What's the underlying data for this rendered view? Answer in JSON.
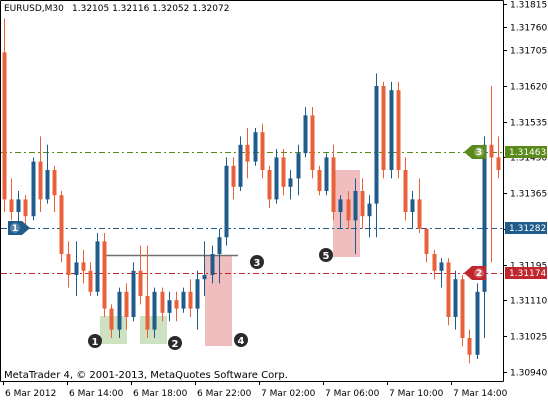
{
  "chart_data": {
    "type": "candlestick",
    "header": {
      "symbol": "EURUSD,M30",
      "ohlc": "1.32105 1.32116 1.32052 1.32072"
    },
    "copyright": "MetaTrader 4, © 2001-2013, MetaQuotes Software Corp.",
    "ylim": [
      1.3092,
      1.3182
    ],
    "y_ticks": [
      "1.31815",
      "1.31760",
      "1.31705",
      "1.31620",
      "1.31535",
      "1.31450",
      "1.31365",
      "1.31280",
      "1.31195",
      "1.31110",
      "1.31025",
      "1.30940"
    ],
    "x_ticks": [
      "6 Mar 2012",
      "6 Mar 14:00",
      "6 Mar 18:00",
      "6 Mar 22:00",
      "7 Mar 02:00",
      "7 Mar 06:00",
      "7 Mar 10:00",
      "7 Mar 14:00"
    ],
    "bull_color": "#1f5c8c",
    "bear_color": "#e8613a",
    "candles": [
      [
        1.317,
        1.3178,
        1.3132,
        1.3135
      ],
      [
        1.3135,
        1.314,
        1.313,
        1.3132
      ],
      [
        1.3132,
        1.3137,
        1.3128,
        1.3135
      ],
      [
        1.3135,
        1.3136,
        1.3128,
        1.3131
      ],
      [
        1.3131,
        1.3145,
        1.313,
        1.3144
      ],
      [
        1.3144,
        1.315,
        1.3132,
        1.3135
      ],
      [
        1.3135,
        1.3148,
        1.3134,
        1.3142
      ],
      [
        1.3142,
        1.3143,
        1.3132,
        1.3136
      ],
      [
        1.3136,
        1.3137,
        1.312,
        1.3122
      ],
      [
        1.3122,
        1.3125,
        1.3114,
        1.3117
      ],
      [
        1.3117,
        1.3125,
        1.3112,
        1.312
      ],
      [
        1.312,
        1.3123,
        1.3115,
        1.3118
      ],
      [
        1.3118,
        1.312,
        1.3112,
        1.3113
      ],
      [
        1.3113,
        1.3127,
        1.3112,
        1.3125
      ],
      [
        1.3125,
        1.3127,
        1.3107,
        1.3109
      ],
      [
        1.3109,
        1.311,
        1.3102,
        1.3104
      ],
      [
        1.3104,
        1.3114,
        1.3102,
        1.3113
      ],
      [
        1.3113,
        1.3115,
        1.3104,
        1.3107
      ],
      [
        1.3107,
        1.312,
        1.3106,
        1.3118
      ],
      [
        1.3118,
        1.3124,
        1.311,
        1.3112
      ],
      [
        1.3112,
        1.3124,
        1.3102,
        1.3104
      ],
      [
        1.3104,
        1.3114,
        1.3102,
        1.3113
      ],
      [
        1.3113,
        1.3114,
        1.3106,
        1.3108
      ],
      [
        1.3108,
        1.3113,
        1.3106,
        1.3111
      ],
      [
        1.3111,
        1.3113,
        1.3106,
        1.3109
      ],
      [
        1.3109,
        1.3114,
        1.3108,
        1.3113
      ],
      [
        1.3113,
        1.3116,
        1.3107,
        1.3109
      ],
      [
        1.3109,
        1.3118,
        1.3104,
        1.3116
      ],
      [
        1.3116,
        1.3125,
        1.3112,
        1.3117
      ],
      [
        1.3117,
        1.3124,
        1.3115,
        1.3122
      ],
      [
        1.3122,
        1.3128,
        1.3115,
        1.3126
      ],
      [
        1.3126,
        1.3145,
        1.3124,
        1.3143
      ],
      [
        1.3143,
        1.3145,
        1.3135,
        1.3138
      ],
      [
        1.3138,
        1.315,
        1.3137,
        1.3148
      ],
      [
        1.3148,
        1.3152,
        1.314,
        1.3144
      ],
      [
        1.3144,
        1.3152,
        1.3143,
        1.3151
      ],
      [
        1.3151,
        1.3153,
        1.314,
        1.3142
      ],
      [
        1.3142,
        1.3143,
        1.3133,
        1.3135
      ],
      [
        1.3135,
        1.3147,
        1.3134,
        1.3145
      ],
      [
        1.3145,
        1.3147,
        1.3136,
        1.3138
      ],
      [
        1.3138,
        1.3142,
        1.3135,
        1.314
      ],
      [
        1.314,
        1.3148,
        1.3136,
        1.3146
      ],
      [
        1.3146,
        1.3157,
        1.3145,
        1.3155
      ],
      [
        1.3155,
        1.3157,
        1.314,
        1.3142
      ],
      [
        1.3142,
        1.3143,
        1.3136,
        1.3137
      ],
      [
        1.3137,
        1.3146,
        1.3136,
        1.3145
      ],
      [
        1.3145,
        1.3148,
        1.313,
        1.3132
      ],
      [
        1.3132,
        1.3136,
        1.3128,
        1.3135
      ],
      [
        1.3135,
        1.3137,
        1.3128,
        1.313
      ],
      [
        1.313,
        1.314,
        1.3122,
        1.3137
      ],
      [
        1.3137,
        1.314,
        1.3128,
        1.3131
      ],
      [
        1.3131,
        1.3136,
        1.3126,
        1.3134
      ],
      [
        1.3134,
        1.3165,
        1.3126,
        1.3162
      ],
      [
        1.3162,
        1.3163,
        1.314,
        1.3142
      ],
      [
        1.3142,
        1.3163,
        1.314,
        1.3161
      ],
      [
        1.3161,
        1.3163,
        1.314,
        1.3142
      ],
      [
        1.3142,
        1.3145,
        1.313,
        1.3132
      ],
      [
        1.3132,
        1.3137,
        1.3128,
        1.3135
      ],
      [
        1.3135,
        1.314,
        1.3127,
        1.3128
      ],
      [
        1.3128,
        1.3128,
        1.312,
        1.3122
      ],
      [
        1.3122,
        1.3123,
        1.3116,
        1.3118
      ],
      [
        1.3118,
        1.3121,
        1.3114,
        1.312
      ],
      [
        1.312,
        1.3121,
        1.3105,
        1.3107
      ],
      [
        1.3107,
        1.3118,
        1.3104,
        1.3116
      ],
      [
        1.3116,
        1.3117,
        1.31,
        1.3102
      ],
      [
        1.3102,
        1.3104,
        1.3096,
        1.3098
      ],
      [
        1.3098,
        1.3115,
        1.3097,
        1.3113
      ],
      [
        1.3113,
        1.315,
        1.3102,
        1.3148
      ],
      [
        1.3148,
        1.3162,
        1.312,
        1.3145
      ],
      [
        1.3145,
        1.315,
        1.314,
        1.3142
      ]
    ],
    "horizontal_lines": [
      {
        "label": "3",
        "value_label": "1.31463",
        "value": 1.31463,
        "color": "#5a8a1c"
      },
      {
        "label": "1",
        "value_label": "1.31282",
        "value": 1.31282,
        "color": "#1f5c8c"
      },
      {
        "label": "2",
        "value_label": "1.31174",
        "value": 1.31174,
        "color": "#c0262b"
      }
    ],
    "annotations": [
      "1",
      "2",
      "3",
      "4",
      "5"
    ]
  }
}
